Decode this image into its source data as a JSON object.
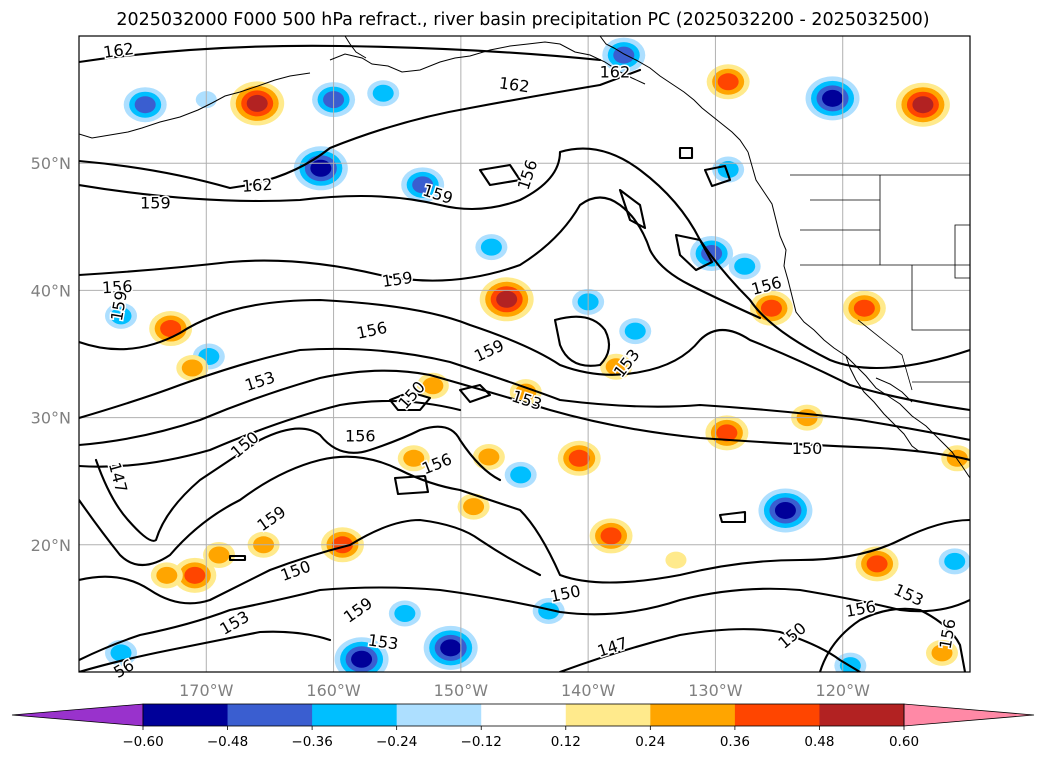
{
  "chart_data": {
    "type": "contour_map",
    "title": "2025032000 F000 500 hPa refract., river basin precipitation PC (2025032200 - 2025032500)",
    "map": {
      "lon_range": [
        -180,
        -110
      ],
      "lat_range": [
        10,
        60
      ],
      "lat_ticks": [
        {
          "value": 20,
          "label": "20°N"
        },
        {
          "value": 30,
          "label": "30°N"
        },
        {
          "value": 40,
          "label": "40°N"
        },
        {
          "value": 50,
          "label": "50°N"
        }
      ],
      "lon_ticks": [
        {
          "value": -170,
          "label": "170°W"
        },
        {
          "value": -160,
          "label": "160°W"
        },
        {
          "value": -150,
          "label": "150°W"
        },
        {
          "value": -140,
          "label": "140°W"
        },
        {
          "value": -130,
          "label": "130°W"
        },
        {
          "value": -120,
          "label": "120°W"
        }
      ],
      "grid": true
    },
    "contour_labels": [
      {
        "text": "162",
        "lon": -176.9,
        "lat": 58.9,
        "rot": -8
      },
      {
        "text": "162",
        "lon": -145.8,
        "lat": 56.2,
        "rot": 8
      },
      {
        "text": "162",
        "lon": -137.9,
        "lat": 57.2,
        "rot": 0
      },
      {
        "text": "162",
        "lon": -166.0,
        "lat": 48.3,
        "rot": -4
      },
      {
        "text": "159",
        "lon": -174.0,
        "lat": 46.9,
        "rot": 0
      },
      {
        "text": "156",
        "lon": -144.8,
        "lat": 49.1,
        "rot": -72
      },
      {
        "text": "159",
        "lon": -151.8,
        "lat": 47.6,
        "rot": 18
      },
      {
        "text": "156",
        "lon": -177.0,
        "lat": 40.3,
        "rot": -3
      },
      {
        "text": "159",
        "lon": -176.9,
        "lat": 38.8,
        "rot": -80
      },
      {
        "text": "159",
        "lon": -155.0,
        "lat": 40.9,
        "rot": -8
      },
      {
        "text": "156",
        "lon": -126.0,
        "lat": 40.4,
        "rot": -15
      },
      {
        "text": "156",
        "lon": -157.0,
        "lat": 36.9,
        "rot": -12
      },
      {
        "text": "159",
        "lon": -147.8,
        "lat": 35.3,
        "rot": -25
      },
      {
        "text": "153",
        "lon": -137.0,
        "lat": 34.3,
        "rot": -52
      },
      {
        "text": "153",
        "lon": -165.8,
        "lat": 32.9,
        "rot": -18
      },
      {
        "text": "150",
        "lon": -153.9,
        "lat": 31.8,
        "rot": -48
      },
      {
        "text": "153",
        "lon": -144.8,
        "lat": 31.4,
        "rot": 18
      },
      {
        "text": "156",
        "lon": -157.9,
        "lat": 28.6,
        "rot": 0
      },
      {
        "text": "150",
        "lon": -167.0,
        "lat": 27.9,
        "rot": -40
      },
      {
        "text": "150",
        "lon": -122.8,
        "lat": 27.6,
        "rot": 0
      },
      {
        "text": "147",
        "lon": -176.9,
        "lat": 25.3,
        "rot": 75
      },
      {
        "text": "156",
        "lon": -151.9,
        "lat": 26.4,
        "rot": -22
      },
      {
        "text": "159",
        "lon": -164.9,
        "lat": 22.1,
        "rot": -35
      },
      {
        "text": "150",
        "lon": -163.0,
        "lat": 18.0,
        "rot": -20
      },
      {
        "text": "150",
        "lon": -141.8,
        "lat": 16.2,
        "rot": -12
      },
      {
        "text": "153",
        "lon": -114.8,
        "lat": 16.1,
        "rot": 25
      },
      {
        "text": "159",
        "lon": -158.1,
        "lat": 14.9,
        "rot": -35
      },
      {
        "text": "156",
        "lon": -118.6,
        "lat": 15.0,
        "rot": -10
      },
      {
        "text": "153",
        "lon": -167.8,
        "lat": 13.9,
        "rot": -30
      },
      {
        "text": "153",
        "lon": -156.1,
        "lat": 12.4,
        "rot": 8
      },
      {
        "text": "147",
        "lon": -138.1,
        "lat": 12.0,
        "rot": -18
      },
      {
        "text": "150",
        "lon": -124.0,
        "lat": 12.9,
        "rot": -40
      },
      {
        "text": "156",
        "lon": -111.8,
        "lat": 13.0,
        "rot": -80
      },
      {
        "text": "56",
        "lon": -176.5,
        "lat": 10.3,
        "rot": -30
      }
    ],
    "precip_anomaly_blobs": [
      {
        "lon": -174.8,
        "lat": 54.6,
        "level": -0.36
      },
      {
        "lon": -166.0,
        "lat": 54.7,
        "level": 0.48
      },
      {
        "lon": -161.0,
        "lat": 49.6,
        "level": -0.48
      },
      {
        "lon": -160.0,
        "lat": 55.0,
        "level": -0.36
      },
      {
        "lon": -156.1,
        "lat": 55.5,
        "level": -0.24
      },
      {
        "lon": -153.0,
        "lat": 48.3,
        "level": -0.36
      },
      {
        "lon": -147.6,
        "lat": 43.4,
        "level": -0.24
      },
      {
        "lon": -137.2,
        "lat": 58.5,
        "level": -0.36
      },
      {
        "lon": -129.0,
        "lat": 56.4,
        "level": 0.36
      },
      {
        "lon": -120.8,
        "lat": 55.1,
        "level": -0.48
      },
      {
        "lon": -113.7,
        "lat": 54.6,
        "level": 0.48
      },
      {
        "lon": -130.3,
        "lat": 42.9,
        "level": -0.36
      },
      {
        "lon": -127.7,
        "lat": 41.9,
        "level": -0.24
      },
      {
        "lon": -129.0,
        "lat": 49.5,
        "level": -0.24
      },
      {
        "lon": -125.6,
        "lat": 38.6,
        "level": 0.36
      },
      {
        "lon": -118.3,
        "lat": 38.6,
        "level": 0.36
      },
      {
        "lon": -140.0,
        "lat": 39.1,
        "level": -0.24
      },
      {
        "lon": -136.3,
        "lat": 36.8,
        "level": -0.24
      },
      {
        "lon": -146.4,
        "lat": 39.3,
        "level": 0.48
      },
      {
        "lon": -176.7,
        "lat": 38.0,
        "level": -0.24
      },
      {
        "lon": -172.8,
        "lat": 37.0,
        "level": 0.36
      },
      {
        "lon": -169.8,
        "lat": 34.8,
        "level": -0.24
      },
      {
        "lon": -171.1,
        "lat": 33.9,
        "level": 0.24
      },
      {
        "lon": -152.2,
        "lat": 32.5,
        "level": 0.24
      },
      {
        "lon": -144.9,
        "lat": 32.0,
        "level": 0.24
      },
      {
        "lon": -137.8,
        "lat": 34.0,
        "level": 0.24
      },
      {
        "lon": -140.7,
        "lat": 26.8,
        "level": 0.36
      },
      {
        "lon": -129.1,
        "lat": 28.8,
        "level": 0.36
      },
      {
        "lon": -122.8,
        "lat": 30.0,
        "level": 0.24
      },
      {
        "lon": -145.3,
        "lat": 25.5,
        "level": -0.24
      },
      {
        "lon": -124.5,
        "lat": 22.7,
        "level": -0.48
      },
      {
        "lon": -138.2,
        "lat": 20.7,
        "level": 0.36
      },
      {
        "lon": -159.3,
        "lat": 20.0,
        "level": 0.36
      },
      {
        "lon": -165.5,
        "lat": 20.0,
        "level": 0.24
      },
      {
        "lon": -169.0,
        "lat": 19.2,
        "level": 0.24
      },
      {
        "lon": -170.9,
        "lat": 17.6,
        "level": 0.36
      },
      {
        "lon": -173.1,
        "lat": 17.6,
        "level": 0.24
      },
      {
        "lon": -117.3,
        "lat": 18.5,
        "level": 0.36
      },
      {
        "lon": -111.2,
        "lat": 18.7,
        "level": -0.24
      },
      {
        "lon": -150.8,
        "lat": 11.9,
        "level": -0.48
      },
      {
        "lon": -157.8,
        "lat": 11.0,
        "level": -0.48
      },
      {
        "lon": -176.7,
        "lat": 11.5,
        "level": -0.24
      },
      {
        "lon": -149.0,
        "lat": 23.0,
        "level": 0.24
      },
      {
        "lon": -153.7,
        "lat": 26.8,
        "level": 0.24
      },
      {
        "lon": -147.8,
        "lat": 26.9,
        "level": 0.24
      },
      {
        "lon": -111.0,
        "lat": 26.8,
        "level": 0.24
      },
      {
        "lon": -112.2,
        "lat": 11.5,
        "level": 0.24
      },
      {
        "lon": -154.4,
        "lat": 14.6,
        "level": -0.24
      },
      {
        "lon": -143.1,
        "lat": 14.8,
        "level": -0.24
      },
      {
        "lon": -119.4,
        "lat": 10.5,
        "level": -0.24
      },
      {
        "lon": -170.0,
        "lat": 55.0,
        "level": -0.12
      },
      {
        "lon": -133.1,
        "lat": 18.8,
        "level": 0.12
      }
    ],
    "colorbar": {
      "colors": [
        "#9932cc",
        "#000099",
        "#3a5ed0",
        "#00bfff",
        "#addfff",
        "#ffffff",
        "#ffea8c",
        "#ffa500",
        "#ff4500",
        "#b22222",
        "#ff89a6"
      ],
      "ticks": [
        "−0.60",
        "−0.48",
        "−0.36",
        "−0.24",
        "−0.12",
        "0.12",
        "0.24",
        "0.36",
        "0.48",
        "0.60"
      ],
      "extend": "both"
    }
  }
}
